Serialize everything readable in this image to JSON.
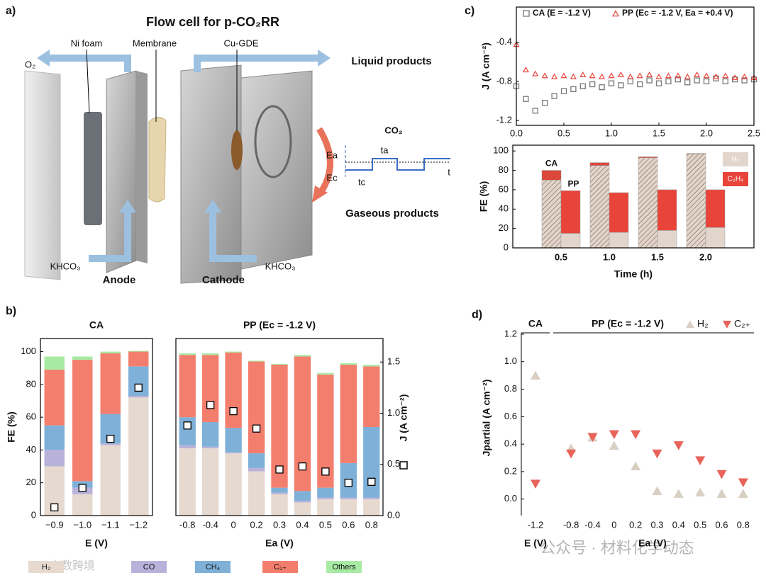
{
  "labels": {
    "a": "a)",
    "b": "b)",
    "c": "c)",
    "d": "d)"
  },
  "diagram": {
    "title": "Flow cell for p-CO₂RR",
    "o2": "O₂",
    "ni_foam": "Ni foam",
    "membrane": "Membrane",
    "cu_gde": "Cu-GDE",
    "liquid": "Liquid products",
    "co2": "CO₂",
    "ea": "Ea",
    "ta": "ta",
    "ec": "Ec",
    "tc": "tc",
    "t": "t",
    "gaseous": "Gaseous products",
    "khco3_anode": "KHCO₃",
    "anode": "Anode",
    "cathode": "Cathode",
    "khco3_cathode": "KHCO₃"
  },
  "watermarks": [
    "公众号 · 材料化学动态",
    "大数跨境"
  ],
  "chart_data": [
    {
      "type": "scatter",
      "ylabel": "J (A cm⁻²)",
      "x": [
        0,
        0.1,
        0.2,
        0.3,
        0.4,
        0.5,
        0.6,
        0.7,
        0.8,
        0.9,
        1.0,
        1.1,
        1.2,
        1.3,
        1.4,
        1.5,
        1.6,
        1.7,
        1.8,
        1.9,
        2.0,
        2.1,
        2.2,
        2.3,
        2.4,
        2.5
      ],
      "series": [
        {
          "name": "CA (E = -1.2 V)",
          "color": "#777777",
          "marker": "square",
          "values": [
            -0.85,
            -0.98,
            -1.1,
            -1.02,
            -0.95,
            -0.9,
            -0.88,
            -0.85,
            -0.83,
            -0.86,
            -0.82,
            -0.84,
            -0.8,
            -0.83,
            -0.79,
            -0.82,
            -0.8,
            -0.78,
            -0.81,
            -0.79,
            -0.8,
            -0.77,
            -0.8,
            -0.78,
            -0.79,
            -0.78
          ]
        },
        {
          "name": "PP (Ec = -1.2 V, Ea = +0.4 V)",
          "color": "#e8443a",
          "marker": "triangle-up",
          "values": [
            -0.42,
            -0.68,
            -0.72,
            -0.74,
            -0.75,
            -0.74,
            -0.75,
            -0.73,
            -0.74,
            -0.75,
            -0.74,
            -0.73,
            -0.75,
            -0.74,
            -0.73,
            -0.75,
            -0.74,
            -0.74,
            -0.75,
            -0.73,
            -0.74,
            -0.75,
            -0.74,
            -0.76,
            -0.75,
            -0.76
          ]
        }
      ],
      "xlim": [
        0,
        2.5
      ],
      "ylim": [
        -1.25,
        -0.04
      ],
      "xticks": [
        {
          "value": 0,
          "label": "0.0"
        },
        0.5,
        {
          "value": 1,
          "label": "1.0"
        },
        1.5,
        {
          "value": 2,
          "label": "2.0"
        },
        2.5
      ],
      "yticks": [
        -0.4,
        -0.8,
        -1.2
      ]
    },
    {
      "type": "bar",
      "stacked": true,
      "xlabel": "Time (h)",
      "ylabel": "FE (%)",
      "categories": [
        "0.5",
        "1.0",
        "1.5",
        "2.0"
      ],
      "groups": [
        "CA",
        "PP"
      ],
      "hatched": [
        true,
        false
      ],
      "series": [
        {
          "name": "H₂",
          "color": "#e2d6cc",
          "values": [
            [
              70,
              15
            ],
            [
              85,
              16
            ],
            [
              93,
              18
            ],
            [
              97,
              21
            ]
          ]
        },
        {
          "name": "C₂H₄",
          "color": "#e8443a",
          "values": [
            [
              10,
              44
            ],
            [
              3,
              41
            ],
            [
              1,
              42
            ],
            [
              0.5,
              39
            ]
          ]
        }
      ],
      "ylim": [
        0,
        106
      ],
      "yticks": [
        0,
        20,
        40,
        60,
        80,
        100
      ]
    },
    {
      "type": "bar",
      "stacked": true,
      "title": "CA",
      "xlabel": "E (V)",
      "ylabel": "FE (%)",
      "categories": [
        "−0.9",
        "−1.0",
        "−1.1",
        "−1.2"
      ],
      "series": [
        {
          "name": "H₂",
          "color": "#e6dad0",
          "values": [
            30,
            13,
            43,
            72
          ]
        },
        {
          "name": "CO",
          "color": "#b8b2da",
          "values": [
            10,
            4,
            1,
            1
          ]
        },
        {
          "name": "CH₄",
          "color": "#7fb0d8",
          "values": [
            15,
            4,
            18,
            18
          ]
        },
        {
          "name": "C₂₊",
          "color": "#f47e6d",
          "values": [
            34,
            74,
            37,
            9
          ]
        },
        {
          "name": "Others",
          "color": "#a8eaa4",
          "values": [
            8,
            2,
            1,
            0.5
          ]
        },
        {
          "axis": "y2",
          "marker": "square",
          "values": [
            0.08,
            0.27,
            0.75,
            1.25
          ]
        }
      ],
      "ylim": [
        0,
        108
      ],
      "yticks": [
        0,
        20,
        40,
        60,
        80,
        100
      ],
      "y2lim": [
        0,
        1.73
      ]
    },
    {
      "type": "bar",
      "stacked": true,
      "title": "PP (Ec = -1.2 V)",
      "xlabel": "Ea (V)",
      "y2label": "J (A cm⁻²)",
      "categories": [
        "-0.8",
        "-0.4",
        "0",
        "0.2",
        "0.3",
        "0.4",
        "0.5",
        "0.6",
        "0.8"
      ],
      "series": [
        {
          "color": "#e6dad0",
          "values": [
            41,
            41,
            38,
            27,
            13,
            8,
            10,
            10,
            10
          ]
        },
        {
          "color": "#b8b2da",
          "values": [
            2,
            1,
            0.5,
            2,
            1,
            1,
            1,
            1,
            1
          ]
        },
        {
          "color": "#7fb0d8",
          "values": [
            17,
            15,
            15,
            9,
            3,
            6,
            6,
            21,
            43
          ]
        },
        {
          "color": "#f47e6d",
          "values": [
            38,
            41,
            46,
            56,
            75,
            82,
            69,
            60,
            37
          ]
        },
        {
          "color": "#a8eaa4",
          "values": [
            1,
            1,
            0.5,
            0.5,
            0.5,
            1,
            1,
            1,
            1
          ]
        },
        {
          "axis": "y2",
          "marker": "square",
          "values": [
            0.88,
            1.08,
            1.02,
            0.85,
            0.45,
            0.48,
            0.43,
            0.32,
            0.33
          ]
        }
      ],
      "ylim": [
        0,
        108
      ],
      "y2lim": [
        0,
        1.73
      ],
      "y2ticks": [
        {
          "value": 0,
          "label": "0.0"
        },
        0.5,
        {
          "value": 1,
          "label": "1.0"
        },
        1.5
      ]
    },
    {
      "type": "scatter",
      "title": "CA",
      "xlabel": "E (V)",
      "ylabel": "Jpartial (A cm⁻²)",
      "categories": [
        "-1.2"
      ],
      "series": [
        {
          "color": "#d9cfc3",
          "marker": "triangle-up",
          "values": [
            0.9
          ]
        },
        {
          "color": "#e8645a",
          "marker": "triangle-down",
          "values": [
            0.11
          ]
        }
      ],
      "ylim": [
        -0.12,
        1.21
      ],
      "yticks": [
        {
          "value": 0,
          "label": "0.0"
        },
        0.2,
        0.4,
        0.6,
        0.8,
        {
          "value": 1,
          "label": "1.0"
        },
        1.2
      ]
    },
    {
      "type": "scatter",
      "title": "PP (Ec = -1.2 V)",
      "xlabel": "Ea (V)",
      "categories": [
        "-0.8",
        "-0.4",
        "0",
        "0.2",
        "0.3",
        "0.4",
        "0.5",
        "0.6",
        "0.8"
      ],
      "series": [
        {
          "name": "H₂",
          "color": "#d9cfc3",
          "marker": "triangle-up",
          "values": [
            0.37,
            0.45,
            0.39,
            0.24,
            0.06,
            0.04,
            0.05,
            0.04,
            0.04
          ]
        },
        {
          "name": "C₂₊",
          "color": "#e8645a",
          "marker": "triangle-down",
          "values": [
            0.33,
            0.45,
            0.47,
            0.47,
            0.33,
            0.39,
            0.28,
            0.18,
            0.12
          ]
        }
      ],
      "ylim": [
        -0.12,
        1.21
      ]
    }
  ]
}
